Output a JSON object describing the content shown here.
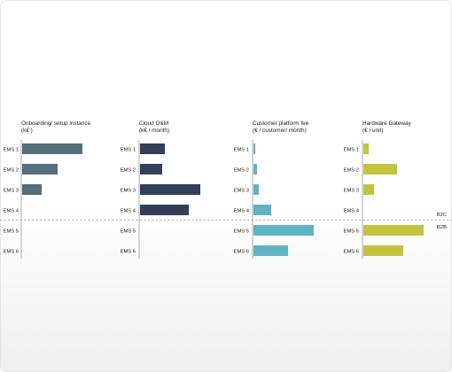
{
  "chart_data": {
    "type": "bar",
    "orientation": "horizontal",
    "categories": [
      "EMS1",
      "EMS2",
      "EMS3",
      "EMS4",
      "EMS5",
      "EMS6"
    ],
    "category_labels": [
      "EMS 1",
      "EMS 2",
      "EMS 3",
      "EMS 4",
      "EMS 5",
      "EMS 6"
    ],
    "segments": [
      {
        "name": "B2C",
        "categories": [
          "EMS1",
          "EMS2",
          "EMS3",
          "EMS4"
        ]
      },
      {
        "name": "B2B",
        "categories": [
          "EMS5",
          "EMS6"
        ]
      }
    ],
    "panels": [
      {
        "title_line1": "Onboarding/ setup instance",
        "title_line2": "(k€ )",
        "color": "#53707a",
        "values": [
          68,
          40,
          22,
          null,
          null,
          null
        ]
      },
      {
        "title_line1": "Cloud O&M",
        "title_line2": "(k€ / month)",
        "color": "#333f58",
        "values": [
          28,
          25,
          68,
          55,
          null,
          null
        ]
      },
      {
        "title_line1": "Customer platform fee",
        "title_line2": "(€ / customer/ month)",
        "color": "#5fb3c2",
        "values": [
          2,
          4,
          6,
          20,
          68,
          39
        ]
      },
      {
        "title_line1": "Hardware Gateway",
        "title_line2": "(€ / unit)",
        "color": "#c2c43f",
        "values": [
          6,
          38,
          12,
          null,
          68,
          45
        ]
      }
    ]
  }
}
